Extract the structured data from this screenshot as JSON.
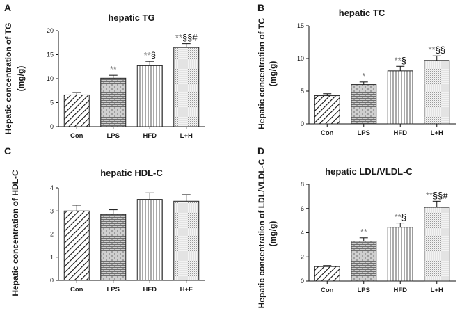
{
  "figure": {
    "annotation_colors": {
      "gray": "#7f7f7f",
      "black": "#111111"
    }
  },
  "chart_data": [
    {
      "id": "A",
      "type": "bar",
      "panel_label": "A",
      "title": "hepatic TG",
      "ylabel_line1": "Hepatic concentration of TG",
      "ylabel_line2": "(mg/g)",
      "ylim": [
        0,
        20
      ],
      "yticks": [
        0,
        5,
        10,
        15,
        20
      ],
      "categories": [
        "Con",
        "LPS",
        "HFD",
        "L+H"
      ],
      "values": [
        6.6,
        10.1,
        12.7,
        16.5
      ],
      "errors": [
        0.5,
        0.6,
        0.9,
        0.8
      ],
      "patterns": [
        "diag",
        "brick",
        "vlines",
        "dots"
      ],
      "annotations": [
        {
          "segments": []
        },
        {
          "segments": [
            {
              "text": "**",
              "color": "gray"
            }
          ]
        },
        {
          "segments": [
            {
              "text": "**",
              "color": "gray"
            },
            {
              "text": "§",
              "color": "black"
            }
          ]
        },
        {
          "segments": [
            {
              "text": "**",
              "color": "gray"
            },
            {
              "text": "§§",
              "color": "black"
            },
            {
              "text": "#",
              "color": "black"
            }
          ]
        }
      ]
    },
    {
      "id": "B",
      "type": "bar",
      "panel_label": "B",
      "title": "hepatic TC",
      "ylabel_line1": "Hepatic concentration of TC",
      "ylabel_line2": "(mg/g)",
      "ylim": [
        0,
        15
      ],
      "yticks": [
        0,
        5,
        10,
        15
      ],
      "categories": [
        "Con",
        "LPS",
        "HFD",
        "L+H"
      ],
      "values": [
        4.3,
        6.0,
        8.1,
        9.7
      ],
      "errors": [
        0.3,
        0.4,
        0.7,
        0.7
      ],
      "patterns": [
        "diag",
        "brick",
        "vlines",
        "dots"
      ],
      "annotations": [
        {
          "segments": []
        },
        {
          "segments": [
            {
              "text": "*",
              "color": "gray"
            }
          ]
        },
        {
          "segments": [
            {
              "text": "**",
              "color": "gray"
            },
            {
              "text": "§",
              "color": "black"
            }
          ]
        },
        {
          "segments": [
            {
              "text": "**",
              "color": "gray"
            },
            {
              "text": "§§",
              "color": "black"
            }
          ]
        }
      ]
    },
    {
      "id": "C",
      "type": "bar",
      "panel_label": "C",
      "title": "hepatic HDL-C",
      "ylabel_line1": "Hepatic concentration of HDL-C",
      "ylabel_line2": "",
      "ylim": [
        0,
        4
      ],
      "yticks": [
        0,
        1,
        2,
        3,
        4
      ],
      "categories": [
        "Con",
        "LPS",
        "HFD",
        "H+F"
      ],
      "values": [
        3.0,
        2.85,
        3.5,
        3.42
      ],
      "errors": [
        0.25,
        0.2,
        0.28,
        0.28
      ],
      "patterns": [
        "diag",
        "brick",
        "vlines",
        "dots"
      ],
      "annotations": [
        {
          "segments": []
        },
        {
          "segments": []
        },
        {
          "segments": []
        },
        {
          "segments": []
        }
      ]
    },
    {
      "id": "D",
      "type": "bar",
      "panel_label": "D",
      "title": "hepatic LDL/VLDL-C",
      "ylabel_line1": "Hepatic concentration of LDL/VLDL-C",
      "ylabel_line2": "(mg/g)",
      "ylim": [
        0,
        8
      ],
      "yticks": [
        0,
        2,
        4,
        6,
        8
      ],
      "categories": [
        "Con",
        "LPS",
        "HFD",
        "L+H"
      ],
      "values": [
        1.2,
        3.3,
        4.45,
        6.1
      ],
      "errors": [
        0.08,
        0.28,
        0.35,
        0.5
      ],
      "patterns": [
        "diag",
        "brick",
        "vlines",
        "dots"
      ],
      "annotations": [
        {
          "segments": []
        },
        {
          "segments": [
            {
              "text": "**",
              "color": "gray"
            }
          ]
        },
        {
          "segments": [
            {
              "text": "**",
              "color": "gray"
            },
            {
              "text": "§",
              "color": "black"
            }
          ]
        },
        {
          "segments": [
            {
              "text": "**",
              "color": "gray"
            },
            {
              "text": "§§",
              "color": "black"
            },
            {
              "text": "#",
              "color": "black"
            }
          ]
        }
      ]
    }
  ]
}
